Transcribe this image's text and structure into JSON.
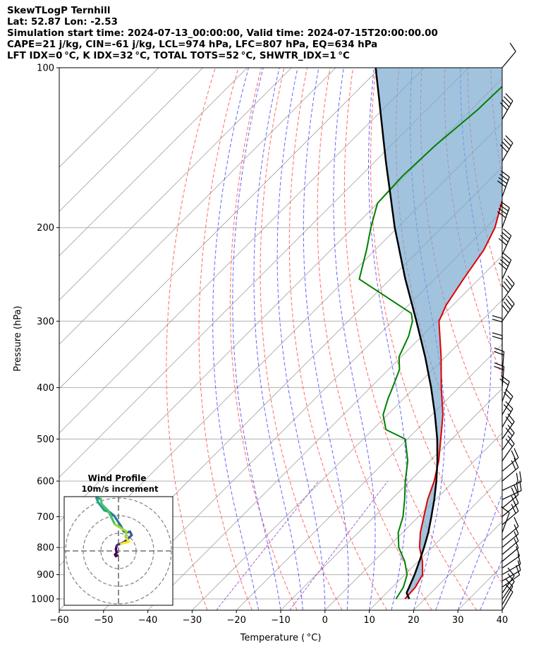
{
  "header": {
    "line1": "SkewTLogP Ternhill",
    "line2": "Lat: 52.87   Lon: -2.53",
    "line3": "Simulation start time: 2024-07-13_00:00:00, Valid time: 2024-07-15T20:00:00.00",
    "line4": "CAPE=21 j/kg, CIN=-61 j/kg, LCL=974 hPa, LFC=807 hPa, EQ=634 hPa",
    "line5": "LFT IDX=0 °C, K IDX=32 °C, TOTAL TOTS=52 °C, SHWTR_IDX=1 °C"
  },
  "colors": {
    "temperature": "#e00000",
    "dewpoint": "#008000",
    "parcel": "#000000",
    "cape_fill": "#7aa9d0",
    "dry_adiabat": "#ff5050",
    "moist_adiabat": "#4040ff",
    "isotherm": "#a0a0a0",
    "mixing_ratio": "#9040c0"
  },
  "chart_data": [
    {
      "type": "line",
      "subtype": "skew-t log-p",
      "xlabel": "Temperature ( °C)",
      "ylabel": "Pressure (hPa)",
      "xlim": [
        -60,
        40
      ],
      "ylim": [
        1050,
        100
      ],
      "y_scale": "log",
      "x_ticks": [
        "−60",
        "−50",
        "−40",
        "−30",
        "−20",
        "−10",
        "0",
        "10",
        "20",
        "30",
        "40"
      ],
      "y_ticks": [
        "100",
        "200",
        "300",
        "400",
        "500",
        "600",
        "700",
        "800",
        "900",
        "1000"
      ],
      "grid": true,
      "series": [
        {
          "key": "temperature",
          "points": [
            [
              1000,
              15.5
            ],
            [
              950,
              15.2
            ],
            [
              900,
              14.0
            ],
            [
              850,
              11.0
            ],
            [
              800,
              7.2
            ],
            [
              750,
              4.0
            ],
            [
              700,
              1.2
            ],
            [
              650,
              -1.8
            ],
            [
              600,
              -4.5
            ],
            [
              550,
              -8.0
            ],
            [
              500,
              -12.5
            ],
            [
              450,
              -17.5
            ],
            [
              400,
              -24.0
            ],
            [
              350,
              -31.0
            ],
            [
              300,
              -39.5
            ],
            [
              280,
              -41.5
            ],
            [
              250,
              -43.5
            ],
            [
              220,
              -45.5
            ],
            [
              200,
              -48.0
            ],
            [
              180,
              -52.0
            ],
            [
              150,
              -58.0
            ],
            [
              130,
              -62.0
            ],
            [
              110,
              -66.0
            ],
            [
              100,
              -69.0
            ]
          ]
        },
        {
          "key": "dewpoint",
          "points": [
            [
              1000,
              13.5
            ],
            [
              950,
              12.5
            ],
            [
              900,
              10.5
            ],
            [
              850,
              7.0
            ],
            [
              800,
              2.5
            ],
            [
              750,
              -1.0
            ],
            [
              700,
              -3.5
            ],
            [
              650,
              -7.0
            ],
            [
              600,
              -11.0
            ],
            [
              550,
              -15.0
            ],
            [
              500,
              -20.5
            ],
            [
              480,
              -27.0
            ],
            [
              450,
              -31.0
            ],
            [
              420,
              -33.5
            ],
            [
              400,
              -35.0
            ],
            [
              370,
              -37.5
            ],
            [
              350,
              -40.5
            ],
            [
              320,
              -43.0
            ],
            [
              300,
              -45.5
            ],
            [
              290,
              -47.5
            ],
            [
              250,
              -67.0
            ],
            [
              220,
              -72.0
            ],
            [
              200,
              -76.0
            ],
            [
              180,
              -80.0
            ],
            [
              160,
              -80.5
            ],
            [
              140,
              -80.0
            ],
            [
              120,
              -78.5
            ],
            [
              100,
              -78.0
            ]
          ]
        },
        {
          "key": "parcel",
          "points": [
            [
              1000,
              16.5
            ],
            [
              974,
              14.5
            ],
            [
              950,
              13.8
            ],
            [
              900,
              12.2
            ],
            [
              850,
              10.3
            ],
            [
              800,
              8.2
            ],
            [
              750,
              5.8
            ],
            [
              700,
              2.9
            ],
            [
              650,
              -0.3
            ],
            [
              600,
              -4.0
            ],
            [
              550,
              -8.3
            ],
            [
              500,
              -13.3
            ],
            [
              450,
              -19.3
            ],
            [
              400,
              -26.3
            ],
            [
              350,
              -34.6
            ],
            [
              300,
              -44.6
            ],
            [
              250,
              -56.6
            ],
            [
              200,
              -70.6
            ],
            [
              150,
              -87.6
            ],
            [
              100,
              -111.0
            ]
          ]
        }
      ]
    },
    {
      "type": "line",
      "subtype": "hodograph",
      "title": "Wind Profile",
      "subtitle": "10m/s increment",
      "rings_ms": [
        10,
        20,
        30
      ],
      "points_uv": [
        [
          1.5,
          4.0
        ],
        [
          3.0,
          4.5
        ],
        [
          5.5,
          5.0
        ],
        [
          6.0,
          5.5
        ],
        [
          5.0,
          6.5
        ],
        [
          4.0,
          8.0
        ],
        [
          4.5,
          11.0
        ],
        [
          3.0,
          12.0
        ],
        [
          -2.0,
          15.0
        ],
        [
          -4.0,
          19.0
        ],
        [
          -6.0,
          23.0
        ],
        [
          -9.5,
          26.5
        ],
        [
          -10.0,
          29.5
        ],
        [
          -12.5,
          30.0
        ],
        [
          -11.5,
          27.5
        ],
        [
          -8.0,
          23.0
        ],
        [
          -5.0,
          22.0
        ],
        [
          -2.5,
          20.0
        ],
        [
          -0.5,
          17.0
        ],
        [
          1.5,
          14.0
        ],
        [
          3.0,
          11.0
        ],
        [
          5.0,
          10.5
        ],
        [
          6.5,
          11.0
        ],
        [
          7.5,
          9.0
        ],
        [
          5.0,
          6.5
        ],
        [
          3.0,
          5.0
        ],
        [
          1.0,
          4.0
        ],
        [
          -0.5,
          3.5
        ],
        [
          -1.0,
          3.0
        ],
        [
          -1.5,
          1.0
        ],
        [
          -1.0,
          -1.0
        ],
        [
          -2.0,
          -2.0
        ],
        [
          -1.5,
          -3.0
        ],
        [
          -0.5,
          -2.5
        ]
      ]
    }
  ]
}
